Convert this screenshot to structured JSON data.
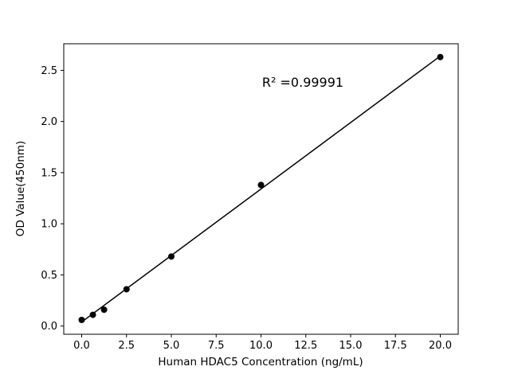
{
  "chart_data": {
    "type": "scatter",
    "title": "",
    "xlabel": "Human HDAC5 Concentration (ng/mL)",
    "ylabel": "OD Value(450nm)",
    "annotation": "R² =0.99991",
    "points": {
      "x": [
        0,
        0.625,
        1.25,
        2.5,
        5,
        10,
        20
      ],
      "y": [
        0.06,
        0.11,
        0.16,
        0.36,
        0.68,
        1.38,
        2.63
      ]
    },
    "fit_line": {
      "x1": 0,
      "y1": 0.04,
      "x2": 20,
      "y2": 2.64
    },
    "xlim": [
      -1,
      21
    ],
    "ylim": [
      -0.08,
      2.76
    ],
    "xticks": [
      0.0,
      2.5,
      5.0,
      7.5,
      10.0,
      12.5,
      15.0,
      17.5,
      20.0
    ],
    "xtick_labels": [
      "0.0",
      "2.5",
      "5.0",
      "7.5",
      "10.0",
      "12.5",
      "15.0",
      "17.5",
      "20.0"
    ],
    "yticks": [
      0.0,
      0.5,
      1.0,
      1.5,
      2.0,
      2.5
    ],
    "ytick_labels": [
      "0.0",
      "0.5",
      "1.0",
      "1.5",
      "2.0",
      "2.5"
    ],
    "grid": false,
    "legend": null,
    "colors": {
      "point": "#000000",
      "line": "#000000",
      "axis": "#000000",
      "background": "#ffffff"
    }
  }
}
